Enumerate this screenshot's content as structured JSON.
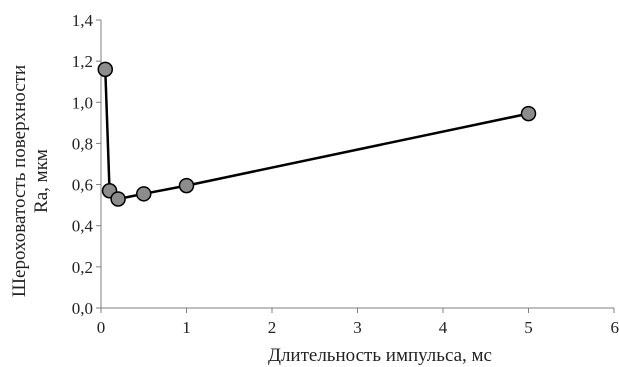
{
  "chart_data": {
    "type": "scatter",
    "title": "",
    "xlabel": "Длительность импульса, мс",
    "ylabel_lines": [
      "Шероховатость поверхности",
      "Ra, мкм"
    ],
    "xlim": [
      0,
      6
    ],
    "ylim": [
      0,
      1.4
    ],
    "x_ticks": [
      "0",
      "1",
      "2",
      "3",
      "4",
      "5",
      "6"
    ],
    "y_ticks": [
      "0,0",
      "0,2",
      "0,4",
      "0,6",
      "0,8",
      "1,0",
      "1,2",
      "1,4"
    ],
    "grid": false,
    "legend": "none",
    "series": [
      {
        "x": [
          0.05,
          0.1,
          0.2,
          0.5,
          1,
          5
        ],
        "y": [
          1.16,
          0.57,
          0.53,
          0.555,
          0.595,
          0.945
        ],
        "line": true,
        "marker": "circle",
        "line_color": "#000000",
        "marker_fill": "#8c8c8c",
        "marker_edge": "#000000"
      }
    ]
  }
}
